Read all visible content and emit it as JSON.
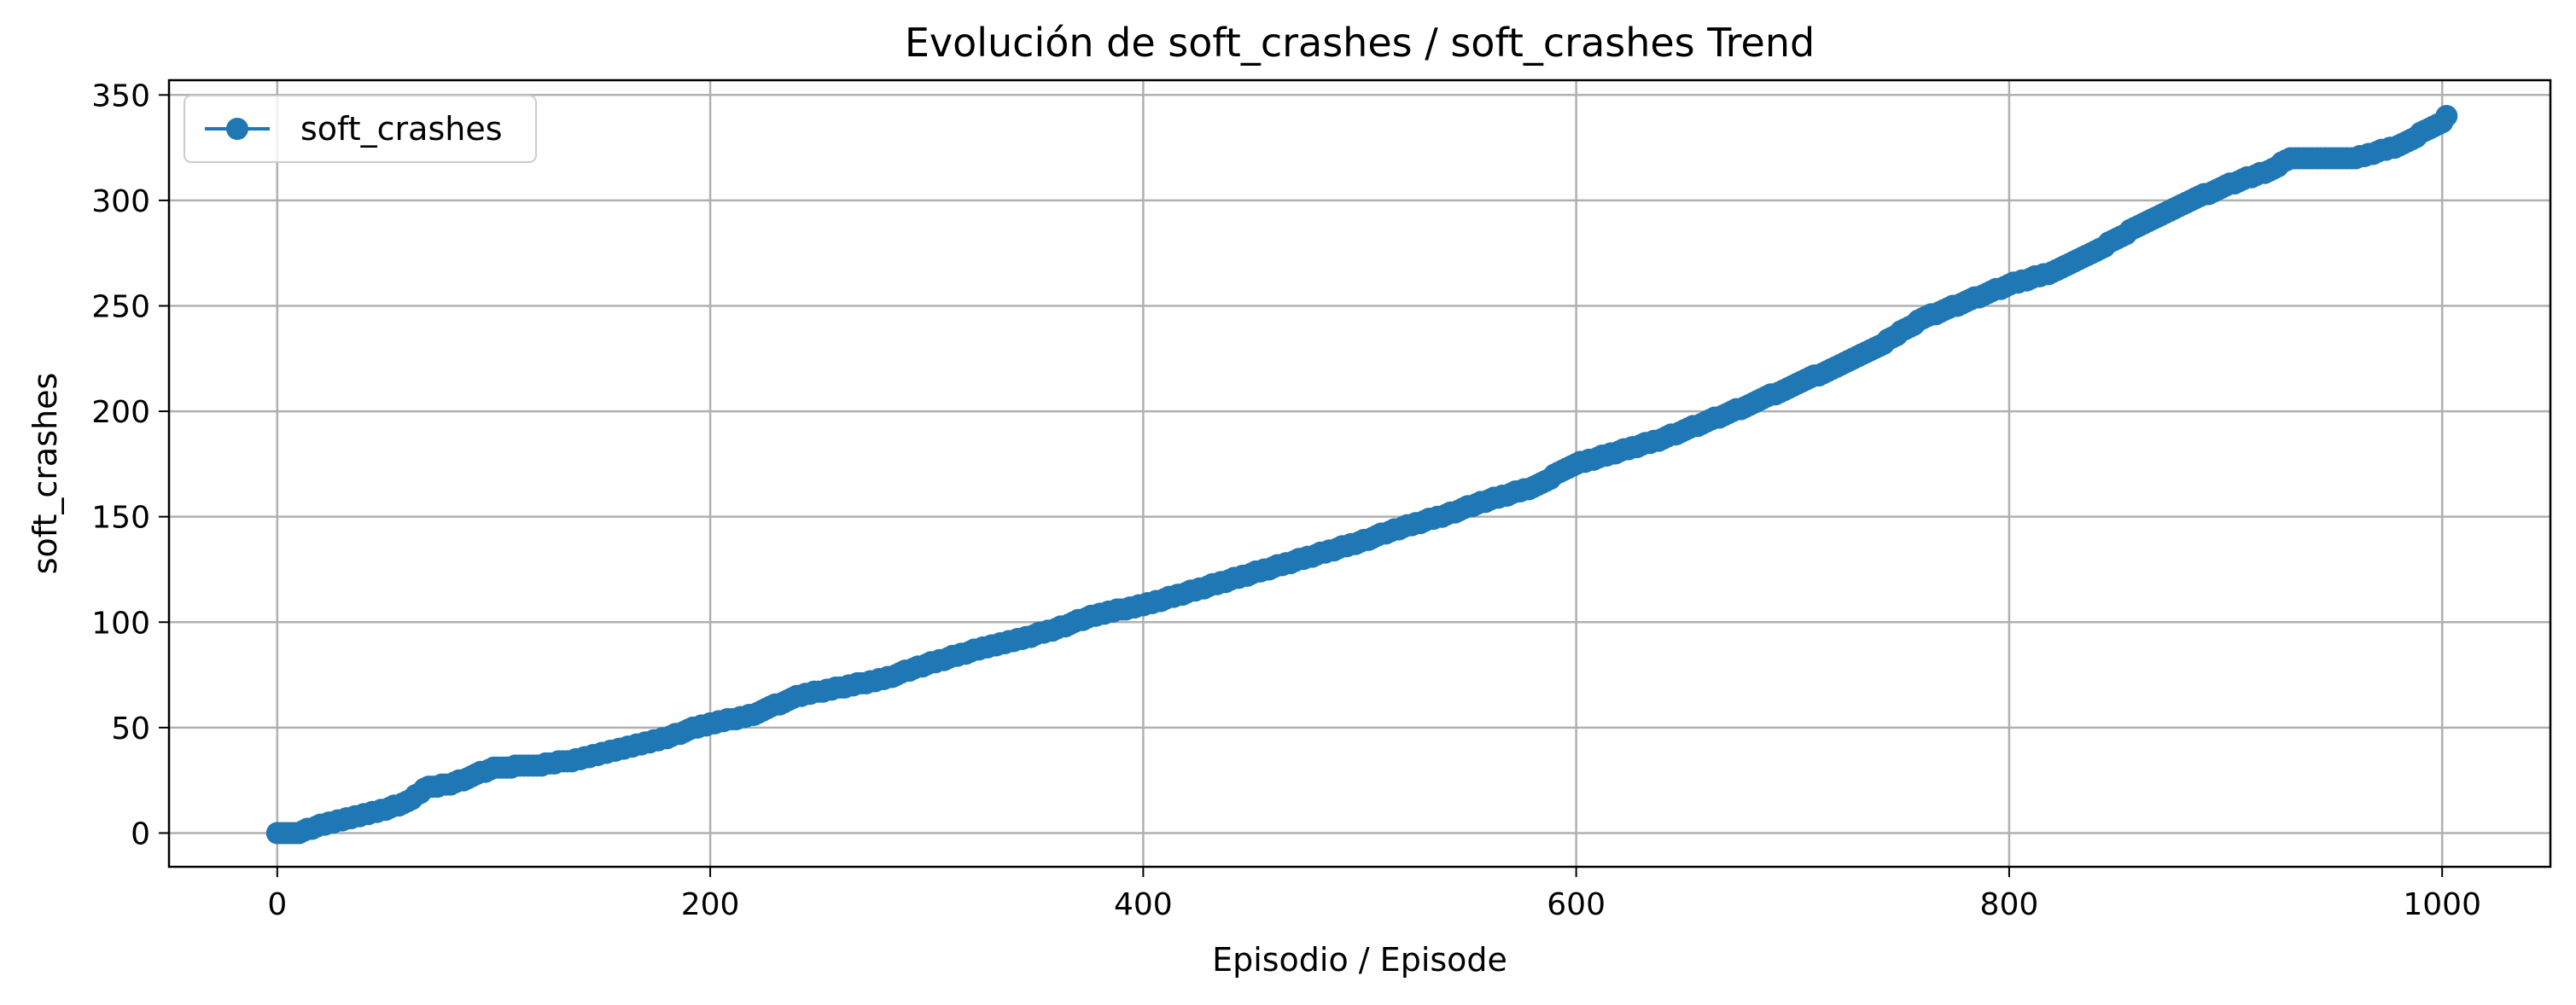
{
  "chart_data": {
    "type": "line",
    "title": "Evolución de soft_crashes / soft_crashes Trend",
    "xlabel": "Episodio / Episode",
    "ylabel": "soft_crashes",
    "xlim": [
      -50,
      1050
    ],
    "ylim": [
      -16,
      357
    ],
    "xticks": [
      0,
      200,
      400,
      600,
      800,
      1000
    ],
    "yticks": [
      0,
      50,
      100,
      150,
      200,
      250,
      300,
      350
    ],
    "grid": true,
    "legend_position": "upper-left",
    "series_color": "#1f77b4",
    "series": [
      {
        "name": "soft_crashes",
        "marker": "circle",
        "points": [
          [
            0,
            0
          ],
          [
            10,
            0
          ],
          [
            20,
            4
          ],
          [
            30,
            6
          ],
          [
            40,
            9
          ],
          [
            50,
            11
          ],
          [
            60,
            15
          ],
          [
            70,
            22
          ],
          [
            80,
            23
          ],
          [
            90,
            27
          ],
          [
            100,
            31
          ],
          [
            120,
            32
          ],
          [
            140,
            35
          ],
          [
            160,
            40
          ],
          [
            180,
            45
          ],
          [
            190,
            49
          ],
          [
            200,
            52
          ],
          [
            220,
            56
          ],
          [
            240,
            65
          ],
          [
            260,
            69
          ],
          [
            280,
            73
          ],
          [
            300,
            80
          ],
          [
            320,
            86
          ],
          [
            340,
            91
          ],
          [
            360,
            97
          ],
          [
            380,
            104
          ],
          [
            400,
            108
          ],
          [
            420,
            114
          ],
          [
            440,
            120
          ],
          [
            460,
            126
          ],
          [
            480,
            132
          ],
          [
            500,
            138
          ],
          [
            520,
            145
          ],
          [
            540,
            151
          ],
          [
            560,
            158
          ],
          [
            580,
            164
          ],
          [
            600,
            175
          ],
          [
            620,
            181
          ],
          [
            640,
            187
          ],
          [
            660,
            195
          ],
          [
            680,
            203
          ],
          [
            700,
            212
          ],
          [
            720,
            221
          ],
          [
            740,
            231
          ],
          [
            760,
            244
          ],
          [
            780,
            252
          ],
          [
            800,
            260
          ],
          [
            820,
            266
          ],
          [
            840,
            276
          ],
          [
            860,
            288
          ],
          [
            880,
            298
          ],
          [
            900,
            307
          ],
          [
            920,
            314
          ],
          [
            930,
            320
          ],
          [
            960,
            320
          ],
          [
            980,
            326
          ],
          [
            1000,
            337
          ],
          [
            1002,
            340
          ]
        ]
      }
    ]
  }
}
